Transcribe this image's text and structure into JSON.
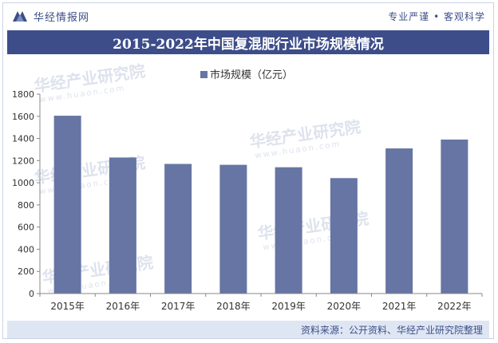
{
  "header": {
    "brand_name": "华经情报网",
    "slogan": "专业严谨 • 客观科学"
  },
  "title": "2015-2022年中国复混肥行业市场规模情况",
  "footer": {
    "source": "资料来源：公开资料、华经产业研究院整理"
  },
  "watermark": {
    "text": "华经产业研究院",
    "url": "www.huaon.com"
  },
  "colors": {
    "bar": "#6675a3",
    "title_bg": "#3d4d8a",
    "accent": "#3c4f86",
    "footer_bg": "#dfe6f3",
    "watermark": "#c3cbe0"
  },
  "icons": {
    "logo": "huajing-logo-icon"
  },
  "chart_data": {
    "type": "bar",
    "categories": [
      "2015年",
      "2016年",
      "2017年",
      "2018年",
      "2019年",
      "2020年",
      "2021年",
      "2022年"
    ],
    "series": [
      {
        "name": "市场规模（亿元）",
        "values": [
          1605,
          1228,
          1170,
          1162,
          1140,
          1042,
          1310,
          1390
        ]
      }
    ],
    "ylim": [
      0,
      1800
    ],
    "yticks": [
      0,
      200,
      400,
      600,
      800,
      1000,
      1200,
      1400,
      1600,
      1800
    ],
    "legend_position": "top-center",
    "grid": false
  }
}
